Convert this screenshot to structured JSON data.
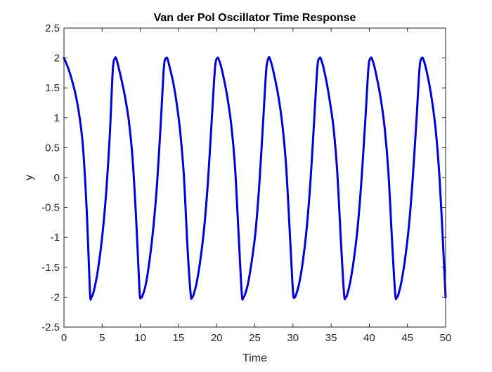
{
  "chart_data": {
    "type": "line",
    "title": "Van der Pol Oscillator Time Response",
    "xlabel": "Time",
    "ylabel": "y",
    "xlim": [
      0,
      50
    ],
    "ylim": [
      -2.5,
      2.5
    ],
    "xticks": [
      0,
      5,
      10,
      15,
      20,
      25,
      30,
      35,
      40,
      45,
      50
    ],
    "yticks": [
      -2.5,
      -2,
      -1.5,
      -1,
      -0.5,
      0,
      0.5,
      1,
      1.5,
      2,
      2.5
    ],
    "xtick_labels": [
      "0",
      "5",
      "10",
      "15",
      "20",
      "25",
      "30",
      "35",
      "40",
      "45",
      "50"
    ],
    "ytick_labels": [
      "-2.5",
      "-2",
      "-1.5",
      "-1",
      "-0.5",
      "0",
      "0.5",
      "1",
      "1.5",
      "2",
      "2.5"
    ],
    "grid": false,
    "box": true,
    "series": [
      {
        "color": "#0000d9",
        "x": [
          0,
          0.5,
          1,
          1.5,
          2,
          2.5,
          3,
          3.4,
          3.6,
          4,
          4.5,
          5,
          5.5,
          6,
          6.4,
          6.7,
          6.9,
          7.2,
          7.6,
          8,
          8.5,
          9,
          9.5,
          9.9,
          10.1,
          10.3,
          10.7,
          11.2,
          11.7,
          12.2,
          12.7,
          13.1,
          13.4,
          13.6,
          13.9,
          14.3,
          14.7,
          15.2,
          15.7,
          16.2,
          16.6,
          16.8,
          17.0,
          17.4,
          17.9,
          18.4,
          18.9,
          19.4,
          19.8,
          20.1,
          20.3,
          20.6,
          21.0,
          21.4,
          21.9,
          22.4,
          22.9,
          23.3,
          23.5,
          23.7,
          24.1,
          24.6,
          25.1,
          25.6,
          26.1,
          26.5,
          26.8,
          27.0,
          27.3,
          27.7,
          28.1,
          28.6,
          29.1,
          29.6,
          30.0,
          30.2,
          30.4,
          30.8,
          31.3,
          31.8,
          32.3,
          32.8,
          33.2,
          33.5,
          33.7,
          34.0,
          34.4,
          34.8,
          35.3,
          35.8,
          36.3,
          36.7,
          36.9,
          37.1,
          37.5,
          38.0,
          38.5,
          39.0,
          39.5,
          39.9,
          40.2,
          40.4,
          40.7,
          41.1,
          41.5,
          42.0,
          42.5,
          43.0,
          43.4,
          43.6,
          43.8,
          44.2,
          44.7,
          45.2,
          45.7,
          46.2,
          46.6,
          46.9,
          47.1,
          47.4,
          47.8,
          48.2,
          48.7,
          49.2,
          49.7,
          50
        ],
        "y": [
          2.0,
          1.85,
          1.65,
          1.4,
          1.05,
          0.5,
          -0.6,
          -1.9,
          -2.0,
          -1.85,
          -1.5,
          -1.0,
          -0.3,
          0.7,
          1.8,
          2.0,
          1.97,
          1.82,
          1.6,
          1.35,
          0.95,
          0.3,
          -0.8,
          -1.9,
          -2.0,
          -1.97,
          -1.8,
          -1.4,
          -0.85,
          -0.1,
          0.95,
          1.85,
          2.0,
          1.97,
          1.82,
          1.6,
          1.3,
          0.8,
          0.05,
          -1.2,
          -1.95,
          -2.0,
          -1.95,
          -1.75,
          -1.35,
          -0.8,
          0.0,
          1.05,
          1.85,
          2.0,
          1.97,
          1.85,
          1.62,
          1.35,
          0.9,
          0.2,
          -1.0,
          -1.95,
          -2.0,
          -1.96,
          -1.78,
          -1.4,
          -0.9,
          -0.1,
          0.95,
          1.8,
          2.0,
          1.98,
          1.85,
          1.62,
          1.35,
          0.9,
          0.2,
          -0.95,
          -1.9,
          -2.0,
          -1.96,
          -1.78,
          -1.4,
          -0.85,
          -0.05,
          1.0,
          1.85,
          2.0,
          1.97,
          1.84,
          1.6,
          1.3,
          0.85,
          0.1,
          -1.1,
          -1.95,
          -2.0,
          -1.96,
          -1.75,
          -1.35,
          -0.8,
          0.0,
          1.0,
          1.85,
          2.0,
          1.97,
          1.84,
          1.6,
          1.32,
          0.85,
          0.1,
          -1.1,
          -1.95,
          -2.0,
          -1.96,
          -1.75,
          -1.35,
          -0.8,
          0.0,
          1.0,
          1.85,
          2.0,
          1.97,
          1.84,
          1.6,
          1.3,
          0.8,
          0.0,
          -1.2,
          -2.0
        ]
      }
    ]
  }
}
